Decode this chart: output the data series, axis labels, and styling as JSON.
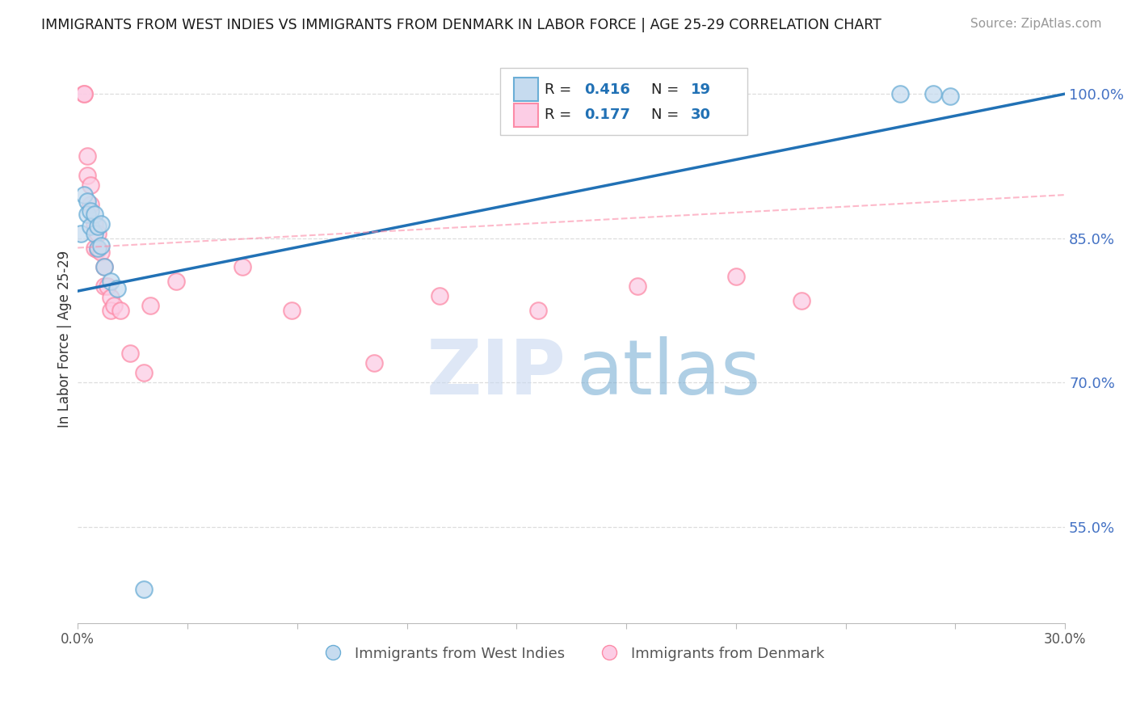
{
  "title": "IMMIGRANTS FROM WEST INDIES VS IMMIGRANTS FROM DENMARK IN LABOR FORCE | AGE 25-29 CORRELATION CHART",
  "source": "Source: ZipAtlas.com",
  "ylabel": "In Labor Force | Age 25-29",
  "xlim": [
    0.0,
    0.3
  ],
  "ylim": [
    0.45,
    1.04
  ],
  "ytick_positions": [
    0.55,
    0.7,
    0.85,
    1.0
  ],
  "ytick_labels": [
    "55.0%",
    "70.0%",
    "85.0%",
    "100.0%"
  ],
  "blue_scatter_x": [
    0.001,
    0.002,
    0.003,
    0.003,
    0.004,
    0.004,
    0.005,
    0.005,
    0.006,
    0.006,
    0.007,
    0.007,
    0.008,
    0.01,
    0.012,
    0.02,
    0.25,
    0.26,
    0.265
  ],
  "blue_scatter_y": [
    0.855,
    0.895,
    0.888,
    0.875,
    0.878,
    0.862,
    0.875,
    0.855,
    0.862,
    0.84,
    0.865,
    0.842,
    0.82,
    0.805,
    0.798,
    0.485,
    1.0,
    1.0,
    0.998
  ],
  "pink_scatter_x": [
    0.002,
    0.002,
    0.003,
    0.003,
    0.004,
    0.004,
    0.005,
    0.005,
    0.006,
    0.006,
    0.007,
    0.008,
    0.008,
    0.009,
    0.01,
    0.01,
    0.011,
    0.013,
    0.016,
    0.02,
    0.022,
    0.03,
    0.05,
    0.065,
    0.09,
    0.11,
    0.14,
    0.17,
    0.2,
    0.22
  ],
  "pink_scatter_y": [
    1.0,
    1.0,
    0.935,
    0.915,
    0.905,
    0.885,
    0.865,
    0.84,
    0.855,
    0.838,
    0.835,
    0.82,
    0.8,
    0.8,
    0.788,
    0.775,
    0.78,
    0.775,
    0.73,
    0.71,
    0.78,
    0.805,
    0.82,
    0.775,
    0.72,
    0.79,
    0.775,
    0.8,
    0.81,
    0.785
  ],
  "blue_line_x": [
    0.0,
    0.3
  ],
  "blue_line_y": [
    0.795,
    1.0
  ],
  "pink_line_x": [
    0.0,
    0.3
  ],
  "pink_line_y": [
    0.84,
    0.895
  ],
  "blue_color": "#6BAED6",
  "pink_color": "#FC8BA7",
  "blue_fill_color": "#C6DBEF",
  "pink_fill_color": "#FCCDE5",
  "blue_line_color": "#2171B5",
  "pink_line_color": "#FC8BA7",
  "r_text_color": "#2171B5",
  "n_text_color": "#2171B5",
  "watermark_zip_color": "#C8D8F0",
  "watermark_atlas_color": "#7BAFD4",
  "legend_label_blue": "Immigrants from West Indies",
  "legend_label_pink": "Immigrants from Denmark",
  "background_color": "#FFFFFF"
}
